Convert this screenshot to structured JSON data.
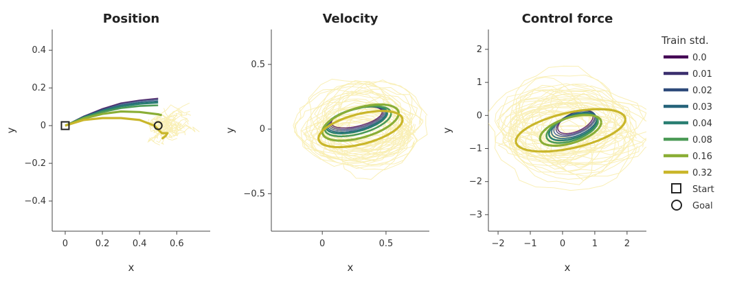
{
  "chart_data": [
    {
      "type": "line",
      "title": "Position",
      "xlabel": "x",
      "ylabel": "y",
      "xlim": [
        -0.07,
        0.78
      ],
      "ylim": [
        -0.56,
        0.51
      ],
      "xticks": [
        0,
        0.2,
        0.4,
        0.6
      ],
      "xtick_labels": [
        "0",
        "0.2",
        "0.4",
        "0.6"
      ],
      "yticks": [
        -0.4,
        -0.2,
        0,
        0.2,
        0.4
      ],
      "ytick_labels": [
        "−0.4",
        "−0.2",
        "0",
        "0.2",
        "0.4"
      ],
      "markers": [
        {
          "name": "Start",
          "symbol": "square",
          "x": 0,
          "y": 0
        },
        {
          "name": "Goal",
          "symbol": "circle",
          "x": 0.5,
          "y": 0
        }
      ],
      "series": [
        {
          "name": "0.0",
          "x": [
            0,
            0.1,
            0.2,
            0.3,
            0.4,
            0.5
          ],
          "y": [
            0,
            0.05,
            0.09,
            0.12,
            0.135,
            0.145
          ]
        },
        {
          "name": "0.01",
          "x": [
            0,
            0.1,
            0.2,
            0.3,
            0.4,
            0.5
          ],
          "y": [
            0,
            0.05,
            0.088,
            0.118,
            0.133,
            0.142
          ]
        },
        {
          "name": "0.02",
          "x": [
            0,
            0.1,
            0.2,
            0.3,
            0.4,
            0.5
          ],
          "y": [
            0,
            0.048,
            0.085,
            0.113,
            0.128,
            0.137
          ]
        },
        {
          "name": "0.03",
          "x": [
            0,
            0.1,
            0.2,
            0.3,
            0.4,
            0.5
          ],
          "y": [
            0,
            0.046,
            0.082,
            0.108,
            0.122,
            0.13
          ]
        },
        {
          "name": "0.04",
          "x": [
            0,
            0.1,
            0.2,
            0.3,
            0.4,
            0.5
          ],
          "y": [
            0,
            0.045,
            0.078,
            0.102,
            0.115,
            0.122
          ]
        },
        {
          "name": "0.08",
          "x": [
            0,
            0.1,
            0.2,
            0.3,
            0.4,
            0.5
          ],
          "y": [
            0,
            0.042,
            0.072,
            0.093,
            0.104,
            0.108
          ]
        },
        {
          "name": "0.16",
          "x": [
            0,
            0.1,
            0.2,
            0.3,
            0.4,
            0.5,
            0.52
          ],
          "y": [
            0,
            0.038,
            0.062,
            0.075,
            0.072,
            0.06,
            0.055
          ]
        },
        {
          "name": "0.32",
          "x": [
            0,
            0.1,
            0.2,
            0.3,
            0.4,
            0.48,
            0.52,
            0.55,
            0.54,
            0.52
          ],
          "y": [
            0,
            0.03,
            0.04,
            0.04,
            0.03,
            0.0,
            -0.04,
            -0.04,
            -0.055,
            -0.07
          ]
        }
      ]
    },
    {
      "type": "line",
      "title": "Velocity",
      "xlabel": "x",
      "ylabel": "y",
      "xlim": [
        -0.4,
        0.84
      ],
      "ylim": [
        -0.79,
        0.77
      ],
      "xticks": [
        0,
        0.5
      ],
      "xtick_labels": [
        "0",
        "0.5"
      ],
      "yticks": [
        -0.5,
        0,
        0.5
      ],
      "ytick_labels": [
        "−0.5",
        "0",
        "0.5"
      ],
      "series": [
        {
          "name": "0.0",
          "loop": {
            "cx": 0.27,
            "cy": 0.09,
            "rx": 0.2,
            "ry": 0.07
          }
        },
        {
          "name": "0.01",
          "loop": {
            "cx": 0.27,
            "cy": 0.085,
            "rx": 0.21,
            "ry": 0.075
          }
        },
        {
          "name": "0.02",
          "loop": {
            "cx": 0.27,
            "cy": 0.08,
            "rx": 0.22,
            "ry": 0.08
          }
        },
        {
          "name": "0.03",
          "loop": {
            "cx": 0.27,
            "cy": 0.075,
            "rx": 0.23,
            "ry": 0.085
          }
        },
        {
          "name": "0.04",
          "loop": {
            "cx": 0.27,
            "cy": 0.07,
            "rx": 0.24,
            "ry": 0.09
          }
        },
        {
          "name": "0.08",
          "loop": {
            "cx": 0.28,
            "cy": 0.06,
            "rx": 0.26,
            "ry": 0.1
          }
        },
        {
          "name": "0.16",
          "loop": {
            "cx": 0.3,
            "cy": 0.05,
            "rx": 0.3,
            "ry": 0.12
          }
        },
        {
          "name": "0.32",
          "loop": {
            "cx": 0.3,
            "cy": 0.0,
            "rx": 0.33,
            "ry": 0.12
          }
        }
      ]
    },
    {
      "type": "line",
      "title": "Control force",
      "xlabel": "x",
      "ylabel": "y",
      "xlim": [
        -2.3,
        2.6
      ],
      "ylim": [
        -3.5,
        2.6
      ],
      "xticks": [
        -2,
        -1,
        0,
        1,
        2
      ],
      "xtick_labels": [
        "−2",
        "−1",
        "0",
        "1",
        "2"
      ],
      "yticks": [
        -3,
        -2,
        -1,
        0,
        1,
        2
      ],
      "ytick_labels": [
        "−3",
        "−2",
        "−1",
        "0",
        "1",
        "2"
      ],
      "series": [
        {
          "name": "0.0",
          "loop": {
            "cx": 0.4,
            "cy": -0.2,
            "rx": 0.55,
            "ry": 0.3
          }
        },
        {
          "name": "0.01",
          "loop": {
            "cx": 0.4,
            "cy": -0.22,
            "rx": 0.6,
            "ry": 0.32
          }
        },
        {
          "name": "0.02",
          "loop": {
            "cx": 0.38,
            "cy": -0.25,
            "rx": 0.65,
            "ry": 0.33
          }
        },
        {
          "name": "0.03",
          "loop": {
            "cx": 0.36,
            "cy": -0.3,
            "rx": 0.7,
            "ry": 0.34
          }
        },
        {
          "name": "0.04",
          "loop": {
            "cx": 0.33,
            "cy": -0.35,
            "rx": 0.75,
            "ry": 0.35
          }
        },
        {
          "name": "0.08",
          "loop": {
            "cx": 0.3,
            "cy": -0.4,
            "rx": 0.8,
            "ry": 0.37
          }
        },
        {
          "name": "0.16",
          "loop": {
            "cx": 0.25,
            "cy": -0.45,
            "rx": 0.95,
            "ry": 0.4
          }
        },
        {
          "name": "0.32",
          "loop": {
            "cx": 0.25,
            "cy": -0.45,
            "rx": 1.7,
            "ry": 0.55
          }
        }
      ]
    }
  ],
  "legend": {
    "title": "Train std.",
    "placement": "right",
    "items": [
      {
        "label": "0.0",
        "color": "#440154"
      },
      {
        "label": "0.01",
        "color": "#3b2f6e"
      },
      {
        "label": "0.02",
        "color": "#2e4a7a"
      },
      {
        "label": "0.03",
        "color": "#26637a"
      },
      {
        "label": "0.04",
        "color": "#2a7f72"
      },
      {
        "label": "0.08",
        "color": "#4b9a56"
      },
      {
        "label": "0.16",
        "color": "#8aae36"
      },
      {
        "label": "0.32",
        "color": "#c9b62a"
      }
    ],
    "markers": [
      {
        "label": "Start",
        "symbol": "square"
      },
      {
        "label": "Goal",
        "symbol": "circle"
      }
    ]
  },
  "noise_color": "#f5e27a"
}
